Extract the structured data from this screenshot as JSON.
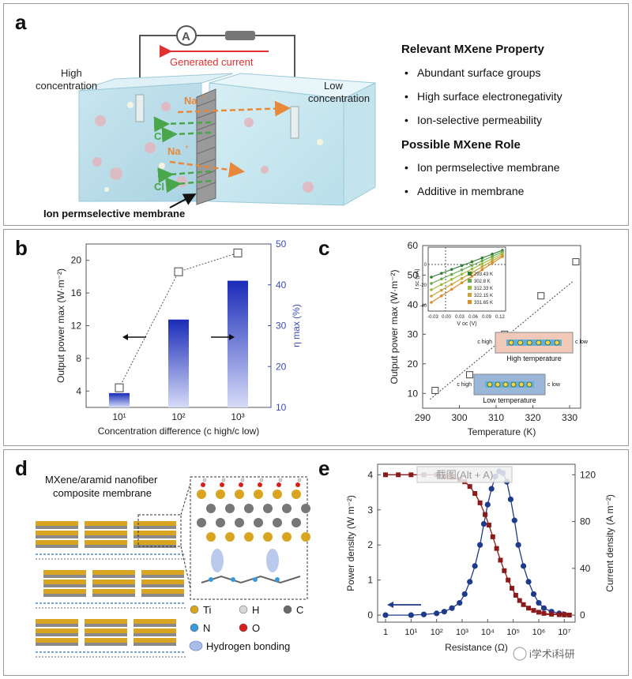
{
  "panel_a": {
    "label": "a",
    "ammeter": "A",
    "generated_current": "Generated current",
    "high_conc": [
      "High",
      "concentration"
    ],
    "low_conc": [
      "Low",
      "concentration"
    ],
    "na_label": "Na",
    "cl_label": "Cl",
    "membrane_label": "Ion permselective membrane",
    "property_title": "Relevant MXene Property",
    "properties": [
      "Abundant surface groups",
      "High surface electronegativity",
      "Ion-selective permeability"
    ],
    "role_title": "Possible MXene Role",
    "roles": [
      "Ion permselective membrane",
      "Additive in membrane"
    ]
  },
  "panel_b": {
    "label": "b",
    "chart_data": {
      "type": "bar",
      "categories": [
        "10¹",
        "10²",
        "10³"
      ],
      "series": [
        {
          "values": [
            13.5,
            31.5,
            41
          ]
        },
        {
          "values": [
            4.4,
            18.6,
            20.9
          ]
        }
      ],
      "xlabel": "Concentration difference (c high/c low)",
      "ylabel_left": "Output power max (W·m⁻²)",
      "ylabel_right": "η max (%)",
      "ylim_left": [
        2,
        22
      ],
      "ylim_right": [
        10,
        50
      ],
      "yticks_left": [
        "4",
        "8",
        "12",
        "16",
        "20"
      ],
      "yticks_right": [
        "10",
        "20",
        "30",
        "40",
        "50"
      ]
    }
  },
  "panel_c": {
    "label": "c",
    "chart_data": {
      "type": "scatter",
      "x": [
        293.4,
        302.8,
        312.3,
        322.2,
        331.7
      ],
      "y": [
        11,
        16.3,
        30,
        43,
        54.5
      ],
      "xlabel": "Temperature (K)",
      "ylabel": "Output power max (W·m⁻²)",
      "xlim": [
        290,
        333
      ],
      "ylim": [
        5,
        60
      ],
      "xticks": [
        "290",
        "300",
        "310",
        "320",
        "330"
      ],
      "yticks": [
        "10",
        "20",
        "30",
        "40",
        "50",
        "60"
      ],
      "inset": {
        "xlabel": "V oc (V)",
        "ylabel": "I sc (μA)",
        "xticks": [
          "-0.03",
          "0.00",
          "0.03",
          "0.06",
          "0.09",
          "0.12"
        ],
        "yticks": [
          "0",
          "-20",
          "-40"
        ],
        "legend": [
          "293.43 K",
          "302.8 K",
          "312.33 K",
          "322.15 K",
          "331.65 K"
        ],
        "colors": [
          "#2e7d32",
          "#6aa84f",
          "#9bbb3a",
          "#c8a33a",
          "#d98c2a"
        ]
      },
      "annotations": [
        "High temperature",
        "Low temperature",
        "c high",
        "c low"
      ]
    }
  },
  "panel_d": {
    "label": "d",
    "title_lines": [
      "MXene/aramid nanofiber",
      "composite membrane"
    ],
    "legend": [
      {
        "text": "Ti",
        "color": "#d9a520"
      },
      {
        "text": "H",
        "color": "#d8d8d8"
      },
      {
        "text": "C",
        "color": "#6a6a6a"
      },
      {
        "text": "N",
        "color": "#3a9ad9"
      },
      {
        "text": "O",
        "color": "#d62020"
      },
      {
        "text": "Hydrogen bonding",
        "color": "#a9bde8"
      }
    ]
  },
  "panel_e": {
    "label": "e",
    "watermark": "截图(Alt + A)",
    "credit": "i学术i科研",
    "chart_data": {
      "type": "line",
      "xlabel": "Resistance (Ω)",
      "ylabel_left": "Power density (W m⁻²)",
      "ylabel_right": "Current density (A m⁻²)",
      "xticks": [
        "1",
        "10¹",
        "10²",
        "10³",
        "10⁴",
        "10⁵",
        "10⁶",
        "10⁷"
      ],
      "yticks_left": [
        "0",
        "1",
        "2",
        "3",
        "4"
      ],
      "yticks_right": [
        "0",
        "40",
        "80",
        "120"
      ],
      "ylim_left": [
        -0.2,
        4.3
      ],
      "ylim_right": [
        -6,
        129
      ],
      "series": [
        {
          "axis": "left",
          "log10_x": [
            0,
            1,
            1.5,
            2,
            2.3,
            2.6,
            2.9,
            3.1,
            3.3,
            3.5,
            3.7,
            3.85,
            4.0,
            4.15,
            4.3,
            4.45,
            4.6,
            4.75,
            4.9,
            5.05,
            5.2,
            5.4,
            5.6,
            5.8,
            6.0,
            6.2,
            6.5,
            6.8,
            7.0
          ],
          "y": [
            0.0,
            0.0,
            0.02,
            0.05,
            0.1,
            0.2,
            0.35,
            0.6,
            0.95,
            1.4,
            2.0,
            2.6,
            3.15,
            3.6,
            3.95,
            4.1,
            4.05,
            3.8,
            3.3,
            2.7,
            2.0,
            1.4,
            0.95,
            0.6,
            0.35,
            0.2,
            0.1,
            0.05,
            0.02
          ],
          "color": "#1e3a8a"
        },
        {
          "axis": "right",
          "log10_x": [
            0,
            0.5,
            1,
            1.5,
            2,
            2.3,
            2.6,
            2.9,
            3.1,
            3.3,
            3.5,
            3.7,
            3.9,
            4.05,
            4.2,
            4.35,
            4.5,
            4.65,
            4.8,
            4.95,
            5.1,
            5.25,
            5.4,
            5.6,
            5.8,
            6.0,
            6.2,
            6.5,
            6.8,
            7.0,
            7.2
          ],
          "y": [
            120,
            120,
            120,
            120,
            120,
            119,
            118,
            116,
            114,
            110,
            104,
            96,
            86,
            77,
            67,
            57,
            47,
            38,
            30,
            23,
            17,
            12.5,
            9,
            6,
            4,
            2.5,
            1.5,
            0.8,
            0.4,
            0.2,
            0.1
          ],
          "color": "#8b1a1a"
        }
      ]
    }
  }
}
